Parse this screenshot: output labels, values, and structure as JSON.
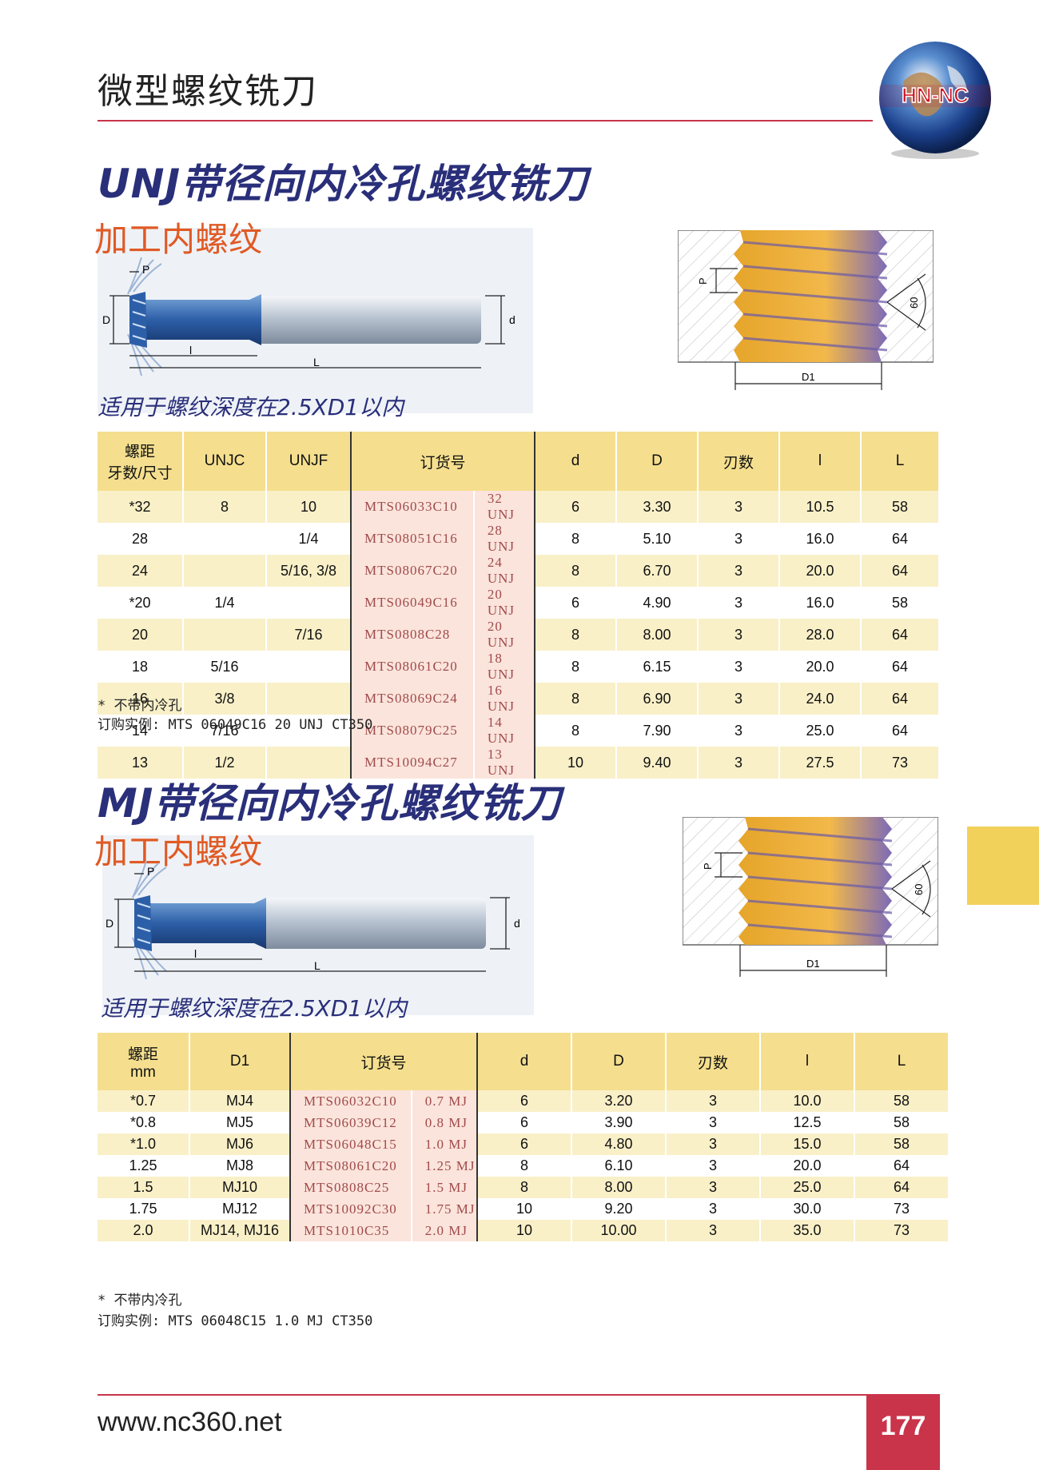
{
  "page": {
    "title": "微型螺纹铣刀",
    "logo_text": "HN-NC",
    "url": "www.nc360.net",
    "page_number": "177"
  },
  "colors": {
    "accent_red": "#c9344a",
    "title_blue": "#2a2f7a",
    "orange": "#e05a25",
    "header_yellow": "#f5df8e"
  },
  "unj": {
    "title": "UNJ带径向内冷孔螺纹铣刀",
    "subtitle": "加工内螺纹",
    "caption": "适用于螺纹深度在2.5XD1以内",
    "diagram_labels": {
      "P": "P",
      "D": "D",
      "d": "d",
      "l": "l",
      "L": "L",
      "D1": "D1",
      "angle": "60"
    },
    "headers": [
      "螺距",
      "牙数/尺寸",
      "UNJC",
      "UNJF",
      "订货号",
      "d",
      "D",
      "刃数",
      "l",
      "L"
    ],
    "rows": [
      [
        "*32",
        "8",
        "10",
        "MTS06033C10",
        "32 UNJ",
        "6",
        "3.30",
        "3",
        "10.5",
        "58"
      ],
      [
        "28",
        "",
        "1/4",
        "MTS08051C16",
        "28 UNJ",
        "8",
        "5.10",
        "3",
        "16.0",
        "64"
      ],
      [
        "24",
        "",
        "5/16, 3/8",
        "MTS08067C20",
        "24 UNJ",
        "8",
        "6.70",
        "3",
        "20.0",
        "64"
      ],
      [
        "*20",
        "1/4",
        "",
        "MTS06049C16",
        "20 UNJ",
        "6",
        "4.90",
        "3",
        "16.0",
        "58"
      ],
      [
        "20",
        "",
        "7/16",
        "MTS0808C28",
        "20 UNJ",
        "8",
        "8.00",
        "3",
        "28.0",
        "64"
      ],
      [
        "18",
        "5/16",
        "",
        "MTS08061C20",
        "18 UNJ",
        "8",
        "6.15",
        "3",
        "20.0",
        "64"
      ],
      [
        "16",
        "3/8",
        "",
        "MTS08069C24",
        "16 UNJ",
        "8",
        "6.90",
        "3",
        "24.0",
        "64"
      ],
      [
        "14",
        "7/16",
        "",
        "MTS08079C25",
        "14 UNJ",
        "8",
        "7.90",
        "3",
        "25.0",
        "64"
      ],
      [
        "13",
        "1/2",
        "",
        "MTS10094C27",
        "13 UNJ",
        "10",
        "9.40",
        "3",
        "27.5",
        "73"
      ]
    ],
    "note1": "* 不带内冷孔",
    "note2": "订购实例: MTS 06049C16 20 UNJ CT350"
  },
  "mj": {
    "title": "MJ带径向内冷孔螺纹铣刀",
    "subtitle": "加工内螺纹",
    "caption": "适用于螺纹深度在2.5XD1以内",
    "diagram_labels": {
      "P": "P",
      "D": "D",
      "d": "d",
      "l": "l",
      "L": "L",
      "D1": "D1",
      "angle": "60"
    },
    "headers": [
      "螺距",
      "mm",
      "D1",
      "订货号",
      "d",
      "D",
      "刃数",
      "l",
      "L"
    ],
    "rows": [
      [
        "*0.7",
        "MJ4",
        "MTS06032C10",
        "0.7 MJ",
        "6",
        "3.20",
        "3",
        "10.0",
        "58"
      ],
      [
        "*0.8",
        "MJ5",
        "MTS06039C12",
        "0.8 MJ",
        "6",
        "3.90",
        "3",
        "12.5",
        "58"
      ],
      [
        "*1.0",
        "MJ6",
        "MTS06048C15",
        "1.0 MJ",
        "6",
        "4.80",
        "3",
        "15.0",
        "58"
      ],
      [
        "1.25",
        "MJ8",
        "MTS08061C20",
        "1.25 MJ",
        "8",
        "6.10",
        "3",
        "20.0",
        "64"
      ],
      [
        "1.5",
        "MJ10",
        "MTS0808C25",
        "1.5 MJ",
        "8",
        "8.00",
        "3",
        "25.0",
        "64"
      ],
      [
        "1.75",
        "MJ12",
        "MTS10092C30",
        "1.75 MJ",
        "10",
        "9.20",
        "3",
        "30.0",
        "73"
      ],
      [
        "2.0",
        "MJ14, MJ16",
        "MTS1010C35",
        "2.0 MJ",
        "10",
        "10.00",
        "3",
        "35.0",
        "73"
      ]
    ],
    "note1": "* 不带内冷孔",
    "note2": "订购实例: MTS 06048C15 1.0 MJ CT350"
  }
}
